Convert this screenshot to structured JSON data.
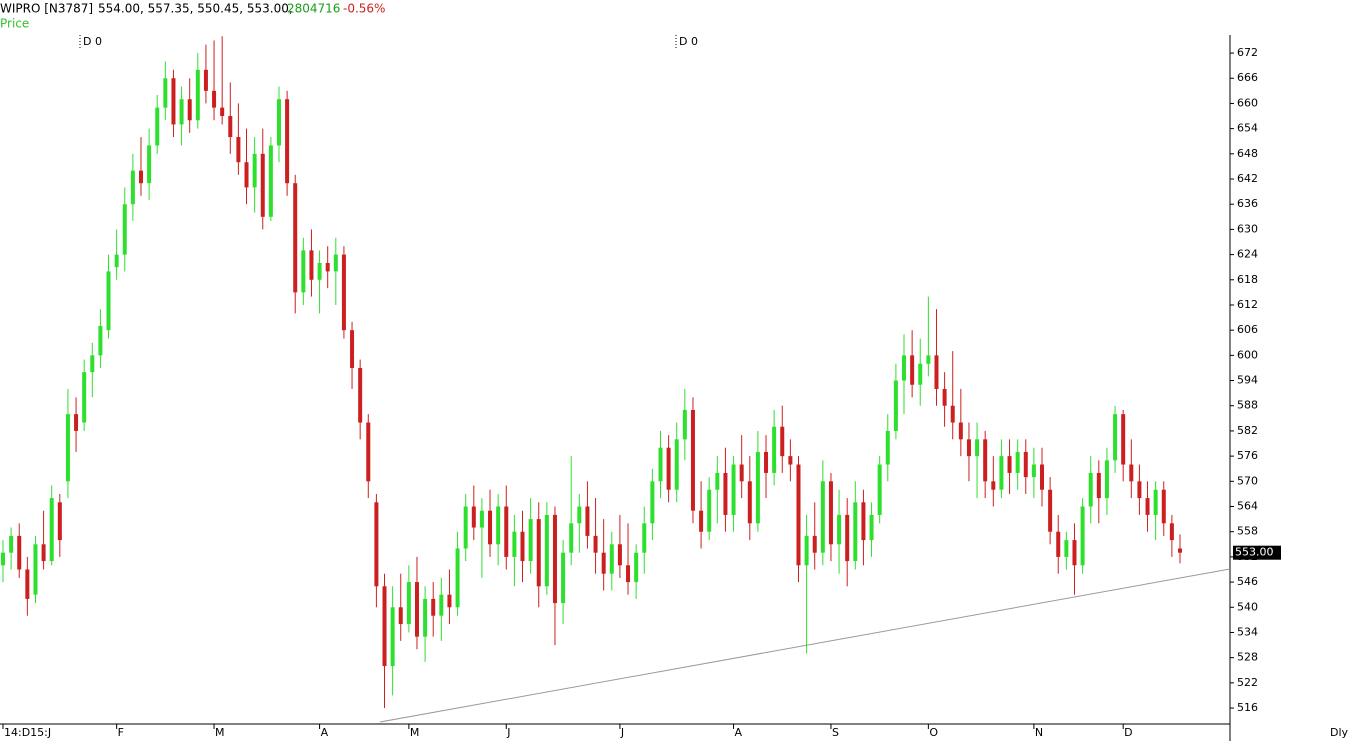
{
  "chart_data": {
    "type": "candlestick",
    "symbol": "WIPRO [N3787]",
    "ohlc_text": "554.00, 557.35, 550.45, 553.00,",
    "volume": 2804716,
    "change": "-0.56%",
    "series_label": "Price",
    "annotations": [
      "D 0",
      "D 0"
    ],
    "period": "Dly",
    "up_color": "#2ee02e",
    "down_color": "#cc1f1f",
    "trendline_color": "#9a9a9a",
    "ylim": [
      512.2,
      676.3
    ],
    "yticks": [
      516,
      522,
      528,
      534,
      540,
      546,
      552,
      558,
      564,
      570,
      576,
      582,
      588,
      594,
      600,
      606,
      612,
      618,
      624,
      630,
      636,
      642,
      648,
      654,
      660,
      666,
      672
    ],
    "last_price": {
      "value": 553,
      "label": "553.00"
    },
    "xticks": [
      {
        "value": 0,
        "label": "14:D15:J"
      },
      {
        "value": 14,
        "label": "F"
      },
      {
        "value": 26,
        "label": "M"
      },
      {
        "value": 39,
        "label": "A"
      },
      {
        "value": 50,
        "label": "M"
      },
      {
        "value": 62,
        "label": "J"
      },
      {
        "value": 76,
        "label": "J"
      },
      {
        "value": 90,
        "label": "A"
      },
      {
        "value": 102,
        "label": "S"
      },
      {
        "value": 114,
        "label": "O"
      },
      {
        "value": 127,
        "label": "N"
      },
      {
        "value": 138,
        "label": "D"
      }
    ],
    "ohlc": [
      [
        550,
        556,
        546,
        553
      ],
      [
        553,
        559,
        549,
        557
      ],
      [
        557,
        560,
        547,
        549
      ],
      [
        549,
        552,
        538,
        542
      ],
      [
        543,
        557,
        541,
        555
      ],
      [
        555,
        563,
        549,
        551
      ],
      [
        551,
        569,
        550,
        566
      ],
      [
        565,
        567,
        552,
        556
      ],
      [
        570,
        592,
        566,
        586
      ],
      [
        586,
        590,
        577,
        582
      ],
      [
        584,
        599,
        582,
        596
      ],
      [
        596,
        603,
        590,
        600
      ],
      [
        600,
        611,
        597,
        607
      ],
      [
        606,
        624,
        604,
        620
      ],
      [
        621,
        630,
        618,
        624
      ],
      [
        624,
        640,
        620,
        636
      ],
      [
        636,
        648,
        632,
        644
      ],
      [
        644,
        652,
        638,
        641
      ],
      [
        641,
        654,
        637,
        650
      ],
      [
        650,
        662,
        648,
        659
      ],
      [
        659,
        670,
        656,
        666
      ],
      [
        666,
        668,
        652,
        655
      ],
      [
        655,
        664,
        650,
        661
      ],
      [
        661,
        666,
        653,
        656
      ],
      [
        656,
        672,
        654,
        668
      ],
      [
        668,
        674,
        660,
        663
      ],
      [
        663,
        675,
        656,
        659
      ],
      [
        659,
        676,
        655,
        657
      ],
      [
        657,
        665,
        648,
        652
      ],
      [
        652,
        660,
        643,
        646
      ],
      [
        646,
        654,
        636,
        640
      ],
      [
        640,
        652,
        634,
        648
      ],
      [
        648,
        654,
        630,
        633
      ],
      [
        633,
        652,
        632,
        650
      ],
      [
        650,
        664,
        646,
        661
      ],
      [
        661,
        663,
        638,
        641
      ],
      [
        641,
        643,
        610,
        615
      ],
      [
        615,
        628,
        612,
        625
      ],
      [
        625,
        630,
        614,
        618
      ],
      [
        618,
        625,
        610,
        622
      ],
      [
        622,
        626,
        616,
        620
      ],
      [
        620,
        628,
        612,
        624
      ],
      [
        624,
        626,
        604,
        606
      ],
      [
        606,
        608,
        592,
        597
      ],
      [
        597,
        599,
        580,
        584
      ],
      [
        584,
        586,
        566,
        570
      ],
      [
        565,
        567,
        540,
        545
      ],
      [
        545,
        548,
        516,
        526
      ],
      [
        526,
        545,
        519,
        540
      ],
      [
        540,
        548,
        532,
        536
      ],
      [
        536,
        550,
        534,
        546
      ],
      [
        546,
        552,
        530,
        533
      ],
      [
        533,
        545,
        527,
        542
      ],
      [
        542,
        546,
        533,
        538
      ],
      [
        538,
        547,
        532,
        543
      ],
      [
        543,
        549,
        536,
        540
      ],
      [
        540,
        558,
        538,
        554
      ],
      [
        554,
        567,
        551,
        564
      ],
      [
        564,
        569,
        556,
        559
      ],
      [
        559,
        566,
        547,
        563
      ],
      [
        563,
        568,
        552,
        555
      ],
      [
        555,
        567,
        550,
        564
      ],
      [
        564,
        569,
        549,
        552
      ],
      [
        552,
        562,
        545,
        558
      ],
      [
        558,
        563,
        546,
        551
      ],
      [
        551,
        566,
        548,
        561
      ],
      [
        561,
        565,
        540,
        545
      ],
      [
        545,
        565,
        543,
        562
      ],
      [
        562,
        564,
        531,
        541
      ],
      [
        541,
        556,
        536,
        553
      ],
      [
        553,
        576,
        550,
        560
      ],
      [
        560,
        567,
        553,
        564
      ],
      [
        564,
        570,
        554,
        557
      ],
      [
        557,
        566,
        548,
        553
      ],
      [
        553,
        561,
        544,
        548
      ],
      [
        548,
        558,
        544,
        555
      ],
      [
        555,
        562,
        547,
        550
      ],
      [
        550,
        560,
        543,
        546
      ],
      [
        546,
        555,
        542,
        553
      ],
      [
        553,
        564,
        548,
        560
      ],
      [
        560,
        573,
        556,
        570
      ],
      [
        570,
        582,
        566,
        578
      ],
      [
        578,
        581,
        565,
        568
      ],
      [
        568,
        584,
        565,
        580
      ],
      [
        580,
        592,
        575,
        587
      ],
      [
        587,
        590,
        560,
        563
      ],
      [
        563,
        570,
        554,
        558
      ],
      [
        558,
        571,
        556,
        568
      ],
      [
        568,
        576,
        560,
        572
      ],
      [
        572,
        578,
        558,
        562
      ],
      [
        562,
        576,
        558,
        574
      ],
      [
        574,
        581,
        566,
        570
      ],
      [
        570,
        576,
        556,
        560
      ],
      [
        560,
        582,
        558,
        577
      ],
      [
        577,
        581,
        566,
        572
      ],
      [
        572,
        587,
        569,
        583
      ],
      [
        583,
        588,
        572,
        576
      ],
      [
        576,
        580,
        570,
        574
      ],
      [
        574,
        576,
        546,
        550
      ],
      [
        550,
        562,
        529,
        557
      ],
      [
        557,
        565,
        549,
        553
      ],
      [
        553,
        575,
        550,
        570
      ],
      [
        570,
        572,
        551,
        555
      ],
      [
        555,
        568,
        548,
        562
      ],
      [
        562,
        566,
        545,
        551
      ],
      [
        551,
        570,
        549,
        565
      ],
      [
        565,
        568,
        550,
        556
      ],
      [
        556,
        565,
        552,
        562
      ],
      [
        562,
        576,
        560,
        574
      ],
      [
        574,
        586,
        570,
        582
      ],
      [
        582,
        598,
        580,
        594
      ],
      [
        594,
        605,
        586,
        600
      ],
      [
        600,
        606,
        590,
        593
      ],
      [
        593,
        604,
        588,
        598
      ],
      [
        598,
        614,
        595,
        600
      ],
      [
        600,
        611,
        588,
        592
      ],
      [
        592,
        596,
        583,
        588
      ],
      [
        588,
        601,
        580,
        584
      ],
      [
        584,
        592,
        576,
        580
      ],
      [
        580,
        584,
        570,
        576
      ],
      [
        576,
        584,
        566,
        580
      ],
      [
        580,
        582,
        566,
        570
      ],
      [
        570,
        576,
        564,
        568
      ],
      [
        568,
        580,
        566,
        576
      ],
      [
        576,
        580,
        567,
        572
      ],
      [
        572,
        580,
        568,
        577
      ],
      [
        577,
        580,
        567,
        571
      ],
      [
        571,
        578,
        566,
        574
      ],
      [
        574,
        578,
        564,
        568
      ],
      [
        568,
        571,
        555,
        558
      ],
      [
        558,
        562,
        548,
        552
      ],
      [
        552,
        558,
        549,
        556
      ],
      [
        556,
        560,
        543,
        550
      ],
      [
        550,
        566,
        548,
        564
      ],
      [
        564,
        576,
        560,
        572
      ],
      [
        572,
        575,
        560,
        566
      ],
      [
        566,
        578,
        562,
        575
      ],
      [
        575,
        588,
        572,
        586
      ],
      [
        586,
        587,
        570,
        574
      ],
      [
        574,
        580,
        566,
        570
      ],
      [
        570,
        574,
        562,
        566
      ],
      [
        566,
        570,
        558,
        562
      ],
      [
        562,
        570,
        556,
        568
      ],
      [
        568,
        570,
        557,
        560
      ],
      [
        560,
        562,
        552,
        556
      ],
      [
        554,
        557.35,
        550.45,
        553
      ]
    ]
  }
}
